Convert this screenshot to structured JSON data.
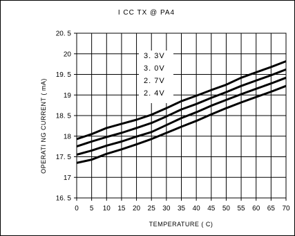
{
  "chart_data": {
    "type": "line",
    "title": "I CC TX @ PA4",
    "xlabel": "TEMPERATURE ( C)",
    "ylabel": "OPERATI NG CURRENT ( mA)",
    "xlim": [
      0,
      70
    ],
    "ylim": [
      16.5,
      20.5
    ],
    "x_ticks": [
      0,
      5,
      10,
      15,
      20,
      25,
      30,
      35,
      40,
      45,
      50,
      55,
      60,
      65,
      70
    ],
    "y_ticks": [
      16.5,
      17,
      17.5,
      18,
      18.5,
      19,
      19.5,
      20,
      20.5
    ],
    "y_tick_labels": [
      "16. 5",
      "17",
      "17. 5",
      "18",
      "18. 5",
      "19",
      "19. 5",
      "20",
      "20. 5"
    ],
    "grid": true,
    "legend_position": "top-center",
    "line_color": "#000000",
    "x": [
      0,
      5,
      10,
      15,
      20,
      25,
      30,
      35,
      40,
      45,
      50,
      55,
      60,
      65,
      70
    ],
    "series": [
      {
        "name": "3. 3V",
        "values": [
          17.93,
          18.05,
          18.2,
          18.3,
          18.4,
          18.52,
          18.68,
          18.85,
          18.98,
          19.12,
          19.25,
          19.42,
          19.55,
          19.68,
          19.82
        ]
      },
      {
        "name": "3. 0V",
        "values": [
          17.75,
          17.87,
          17.98,
          18.08,
          18.2,
          18.32,
          18.48,
          18.65,
          18.78,
          18.93,
          19.07,
          19.22,
          19.35,
          19.48,
          19.62
        ]
      },
      {
        "name": "2. 7V",
        "values": [
          17.55,
          17.65,
          17.77,
          17.87,
          17.99,
          18.1,
          18.27,
          18.44,
          18.58,
          18.74,
          18.88,
          19.02,
          19.15,
          19.28,
          19.42
        ]
      },
      {
        "name": "2. 4V",
        "values": [
          17.35,
          17.43,
          17.57,
          17.68,
          17.8,
          17.93,
          18.08,
          18.23,
          18.37,
          18.53,
          18.68,
          18.82,
          18.95,
          19.08,
          19.22
        ]
      }
    ]
  }
}
